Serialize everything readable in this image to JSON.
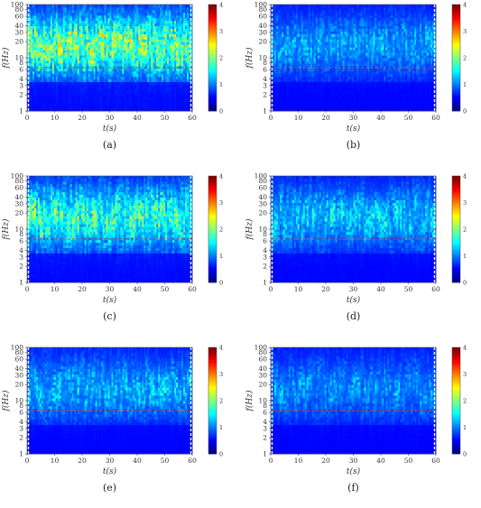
{
  "chart_data": [
    {
      "type": "heatmap",
      "panel_label": "(a)",
      "xlabel": "t(s)",
      "ylabel": "f(Hz)",
      "xlim": [
        0,
        60
      ],
      "ylim": [
        1,
        100
      ],
      "yscale": "log",
      "x_ticks": [
        "0",
        "10",
        "20",
        "30",
        "40",
        "50",
        "60"
      ],
      "y_ticks": [
        "1",
        "2",
        "3",
        "4",
        "6",
        "8",
        "10",
        "20",
        "30",
        "40",
        "60",
        "80",
        "100"
      ],
      "colorbar_ticks": [
        "0",
        "1",
        "2",
        "3",
        "4"
      ],
      "clim": [
        0,
        4
      ],
      "colormap": "jet",
      "ref_line_hz": 6.5,
      "ref_line_color": "#c84a2a",
      "intensity": 1.0
    },
    {
      "type": "heatmap",
      "panel_label": "(b)",
      "xlabel": "t(s)",
      "ylabel": "f(Hz)",
      "xlim": [
        0,
        60
      ],
      "ylim": [
        1,
        100
      ],
      "yscale": "log",
      "x_ticks": [
        "0",
        "10",
        "20",
        "30",
        "40",
        "50",
        "60"
      ],
      "y_ticks": [
        "1",
        "2",
        "3",
        "4",
        "6",
        "8",
        "10",
        "20",
        "30",
        "40",
        "60",
        "80",
        "100"
      ],
      "colorbar_ticks": [
        "0",
        "1",
        "2",
        "3",
        "4"
      ],
      "clim": [
        0,
        4
      ],
      "colormap": "jet",
      "ref_line_hz": 6.5,
      "ref_line_color": "#c84a2a",
      "intensity": 0.45
    },
    {
      "type": "heatmap",
      "panel_label": "(c)",
      "xlabel": "t(s)",
      "ylabel": "f(Hz)",
      "xlim": [
        0,
        60
      ],
      "ylim": [
        1,
        100
      ],
      "yscale": "log",
      "x_ticks": [
        "0",
        "10",
        "20",
        "30",
        "40",
        "50",
        "60"
      ],
      "y_ticks": [
        "1",
        "2",
        "3",
        "4",
        "6",
        "8",
        "10",
        "20",
        "30",
        "40",
        "60",
        "80",
        "100"
      ],
      "colorbar_ticks": [
        "0",
        "1",
        "2",
        "3",
        "4"
      ],
      "clim": [
        0,
        4
      ],
      "colormap": "jet",
      "ref_line_hz": 6.5,
      "ref_line_color": "#c84a2a",
      "intensity": 0.85
    },
    {
      "type": "heatmap",
      "panel_label": "(d)",
      "xlabel": "t(s)",
      "ylabel": "f(Hz)",
      "xlim": [
        0,
        60
      ],
      "ylim": [
        1,
        100
      ],
      "yscale": "log",
      "x_ticks": [
        "0",
        "10",
        "20",
        "30",
        "40",
        "50",
        "60"
      ],
      "y_ticks": [
        "1",
        "2",
        "3",
        "4",
        "6",
        "8",
        "10",
        "20",
        "30",
        "40",
        "60",
        "80",
        "100"
      ],
      "colorbar_ticks": [
        "0",
        "1",
        "2",
        "3",
        "4"
      ],
      "clim": [
        0,
        4
      ],
      "colormap": "jet",
      "ref_line_hz": 6.5,
      "ref_line_color": "#c84a2a",
      "intensity": 0.55
    },
    {
      "type": "heatmap",
      "panel_label": "(e)",
      "xlabel": "t(s)",
      "ylabel": "f(Hz)",
      "xlim": [
        0,
        60
      ],
      "ylim": [
        1,
        100
      ],
      "yscale": "log",
      "x_ticks": [
        "0",
        "10",
        "20",
        "30",
        "40",
        "50",
        "60"
      ],
      "y_ticks": [
        "1",
        "2",
        "3",
        "4",
        "6",
        "8",
        "10",
        "20",
        "30",
        "40",
        "60",
        "80",
        "100"
      ],
      "colorbar_ticks": [
        "0",
        "1",
        "2",
        "3",
        "4"
      ],
      "clim": [
        0,
        4
      ],
      "colormap": "jet",
      "ref_line_hz": 6.5,
      "ref_line_color": "#c84a2a",
      "intensity": 0.5
    },
    {
      "type": "heatmap",
      "panel_label": "(f)",
      "xlabel": "t(s)",
      "ylabel": "f(Hz)",
      "xlim": [
        0,
        60
      ],
      "ylim": [
        1,
        100
      ],
      "yscale": "log",
      "x_ticks": [
        "0",
        "10",
        "20",
        "30",
        "40",
        "50",
        "60"
      ],
      "y_ticks": [
        "1",
        "2",
        "3",
        "4",
        "6",
        "8",
        "10",
        "20",
        "30",
        "40",
        "60",
        "80",
        "100"
      ],
      "colorbar_ticks": [
        "0",
        "1",
        "2",
        "3",
        "4"
      ],
      "clim": [
        0,
        4
      ],
      "colormap": "jet",
      "ref_line_hz": 6.5,
      "ref_line_color": "#c84a2a",
      "intensity": 0.4
    }
  ]
}
